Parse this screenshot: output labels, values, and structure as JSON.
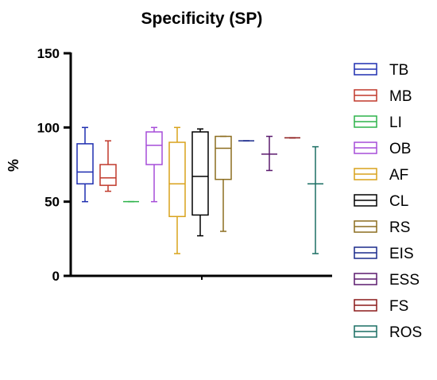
{
  "chart_data": {
    "type": "box",
    "title": "Specificity (SP)",
    "ylabel": "%",
    "xlabel": "",
    "ylim": [
      0,
      150
    ],
    "yticks": [
      0,
      50,
      100,
      150
    ],
    "grid": false,
    "legend_position": "right",
    "series": [
      {
        "name": "TB",
        "color": "#1f2fb0",
        "min": 50,
        "q1": 62,
        "median": 70,
        "q3": 89,
        "max": 100
      },
      {
        "name": "MB",
        "color": "#c0392b",
        "min": 57,
        "q1": 61,
        "median": 66,
        "q3": 75,
        "max": 91
      },
      {
        "name": "LI",
        "color": "#2db34a",
        "min": 50,
        "q1": 50,
        "median": 50,
        "q3": 50,
        "max": 50
      },
      {
        "name": "OB",
        "color": "#a64dd9",
        "min": 50,
        "q1": 75,
        "median": 88,
        "q3": 97,
        "max": 100
      },
      {
        "name": "AF",
        "color": "#d9a21b",
        "min": 15,
        "q1": 40,
        "median": 62,
        "q3": 90,
        "max": 100
      },
      {
        "name": "CL",
        "color": "#000000",
        "min": 27,
        "q1": 41,
        "median": 67,
        "q3": 97,
        "max": 99
      },
      {
        "name": "RS",
        "color": "#8c6d1f",
        "min": 30,
        "q1": 65,
        "median": 86,
        "q3": 94,
        "max": 94
      },
      {
        "name": "EIS",
        "color": "#1a2a8c",
        "min": 91,
        "q1": 91,
        "median": 91,
        "q3": 91,
        "max": 91
      },
      {
        "name": "ESS",
        "color": "#5b1a6e",
        "min": 71,
        "q1": 82,
        "median": 82,
        "q3": 82,
        "max": 94
      },
      {
        "name": "FS",
        "color": "#8c1a1a",
        "min": 93,
        "q1": 93,
        "median": 93,
        "q3": 93,
        "max": 93
      },
      {
        "name": "ROS",
        "color": "#1a6e63",
        "min": 15,
        "q1": 62,
        "median": 62,
        "q3": 62,
        "max": 87
      }
    ]
  }
}
